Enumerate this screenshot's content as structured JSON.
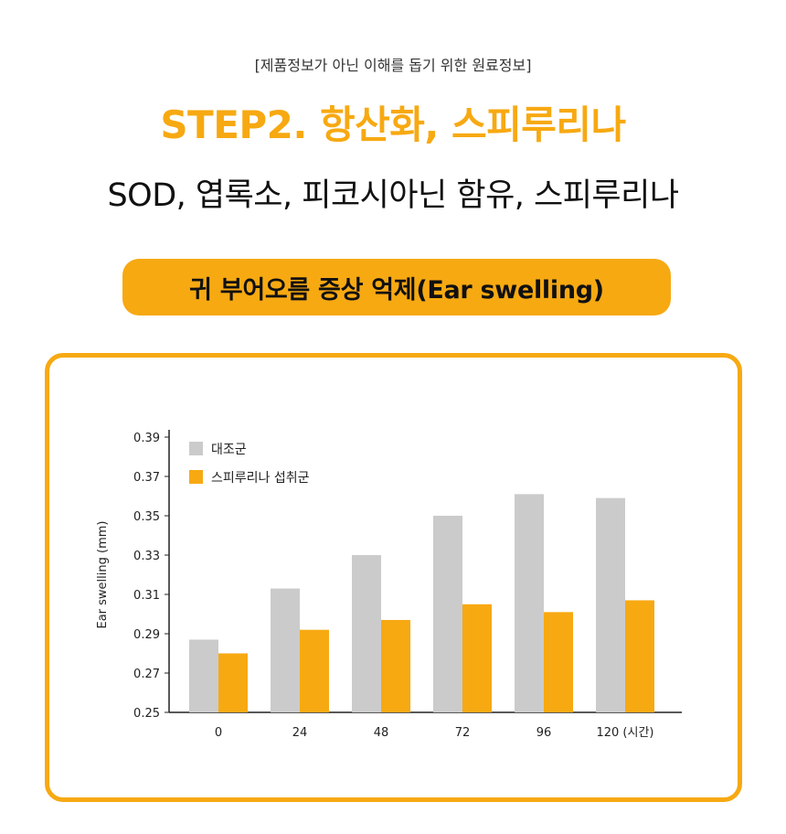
{
  "header": {
    "disclaimer": "[제품정보가 아닌 이해를 돕기 위한 원료정보]",
    "headline": "STEP2. 항산화, 스피루리나",
    "subtitle": "SOD, 엽록소, 피코시아닌 함유, 스피루리나"
  },
  "pill": {
    "label": "귀 부어오름 증상 억제(Ear swelling)"
  },
  "colors": {
    "accent": "#F7A912",
    "control_bar": "#CBCBCB",
    "treatment_bar": "#F7A912"
  },
  "chart_data": {
    "type": "bar",
    "categories": [
      "0",
      "24",
      "48",
      "72",
      "96",
      "120 (시간)"
    ],
    "series": [
      {
        "name": "대조군",
        "values": [
          0.287,
          0.313,
          0.33,
          0.35,
          0.361,
          0.359
        ]
      },
      {
        "name": "스피루리나 섭취군",
        "values": [
          0.28,
          0.292,
          0.297,
          0.305,
          0.301,
          0.307
        ]
      }
    ],
    "title": "",
    "xlabel": "",
    "ylabel": "Ear swelling (mm)",
    "ylim": [
      0.25,
      0.39
    ],
    "yticks": [
      "0.25",
      "0.27",
      "0.29",
      "0.31",
      "0.33",
      "0.35",
      "0.37",
      "0.39"
    ],
    "grid": false,
    "legend": "top-left"
  }
}
